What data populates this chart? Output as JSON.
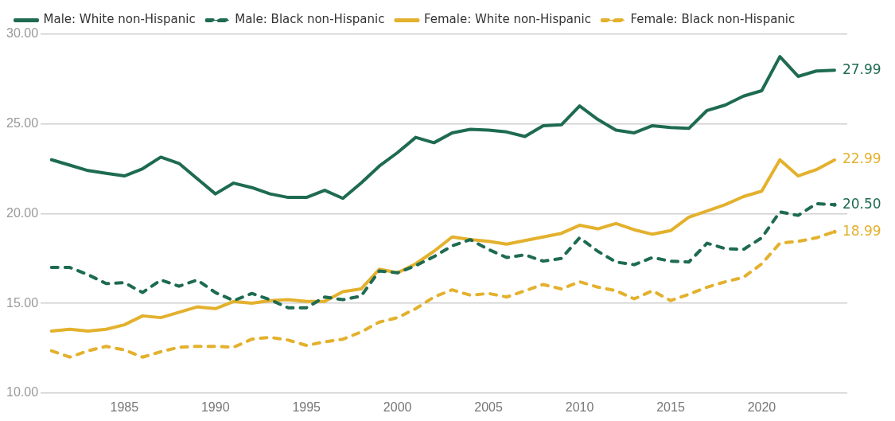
{
  "chart_data": {
    "type": "line",
    "x": [
      1981,
      1982,
      1983,
      1984,
      1985,
      1986,
      1987,
      1988,
      1989,
      1990,
      1991,
      1992,
      1993,
      1994,
      1995,
      1996,
      1997,
      1998,
      1999,
      2000,
      2001,
      2002,
      2003,
      2004,
      2005,
      2006,
      2007,
      2008,
      2009,
      2010,
      2011,
      2012,
      2013,
      2014,
      2015,
      2016,
      2017,
      2018,
      2019,
      2020,
      2021,
      2022,
      2023,
      2024
    ],
    "series": [
      {
        "name": "Male: White non-Hispanic",
        "color": "#1e6b52",
        "line_style": "solid",
        "values": [
          23.0,
          22.7,
          22.4,
          22.25,
          22.1,
          22.5,
          23.15,
          22.8,
          21.95,
          21.1,
          21.7,
          21.45,
          21.1,
          20.9,
          20.9,
          21.3,
          20.85,
          21.7,
          22.65,
          23.4,
          24.25,
          23.95,
          24.5,
          24.7,
          24.65,
          24.55,
          24.3,
          24.9,
          24.95,
          26.0,
          25.25,
          24.65,
          24.5,
          24.9,
          24.8,
          24.75,
          25.75,
          26.05,
          26.55,
          26.85,
          28.75,
          27.65,
          27.95,
          27.99
        ],
        "value_labels": [
          null,
          null,
          null,
          null,
          null,
          null,
          null,
          null,
          null,
          null,
          null,
          null,
          null,
          null,
          null,
          null,
          null,
          null,
          null,
          null,
          null,
          null,
          null,
          null,
          null,
          null,
          null,
          null,
          null,
          null,
          null,
          null,
          null,
          null,
          null,
          null,
          null,
          null,
          null,
          null,
          null,
          null,
          null,
          "27.99"
        ]
      },
      {
        "name": "Male: Black non-Hispanic",
        "color": "#1e6b52",
        "line_style": "dashed",
        "values": [
          17.0,
          17.0,
          16.6,
          16.1,
          16.15,
          15.6,
          16.3,
          15.95,
          16.3,
          15.6,
          15.15,
          15.55,
          15.2,
          14.75,
          14.75,
          15.35,
          15.2,
          15.4,
          16.8,
          16.7,
          17.1,
          17.6,
          18.2,
          18.55,
          18.0,
          17.55,
          17.7,
          17.35,
          17.5,
          18.65,
          17.9,
          17.3,
          17.15,
          17.55,
          17.35,
          17.3,
          18.35,
          18.05,
          18.0,
          18.65,
          20.1,
          19.9,
          20.55,
          20.5
        ],
        "value_labels": [
          null,
          null,
          null,
          null,
          null,
          null,
          null,
          null,
          null,
          null,
          null,
          null,
          null,
          null,
          null,
          null,
          null,
          null,
          null,
          null,
          null,
          null,
          null,
          null,
          null,
          null,
          null,
          null,
          null,
          null,
          null,
          null,
          null,
          null,
          null,
          null,
          null,
          null,
          null,
          null,
          null,
          null,
          null,
          "20.50"
        ]
      },
      {
        "name": "Female: White non-Hispanic",
        "color": "#e3b12d",
        "line_style": "solid",
        "values": [
          13.45,
          13.55,
          13.45,
          13.55,
          13.8,
          14.3,
          14.2,
          14.5,
          14.8,
          14.7,
          15.1,
          15.0,
          15.15,
          15.2,
          15.1,
          15.1,
          15.65,
          15.8,
          16.9,
          16.7,
          17.2,
          17.9,
          18.7,
          18.55,
          18.45,
          18.3,
          18.5,
          18.7,
          18.9,
          19.35,
          19.15,
          19.45,
          19.1,
          18.85,
          19.05,
          19.8,
          20.15,
          20.5,
          20.95,
          21.25,
          23.0,
          22.1,
          22.45,
          22.99
        ],
        "value_labels": [
          null,
          null,
          null,
          null,
          null,
          null,
          null,
          null,
          null,
          null,
          null,
          null,
          null,
          null,
          null,
          null,
          null,
          null,
          null,
          null,
          null,
          null,
          null,
          null,
          null,
          null,
          null,
          null,
          null,
          null,
          null,
          null,
          null,
          null,
          null,
          null,
          null,
          null,
          null,
          null,
          null,
          null,
          null,
          "22.99"
        ]
      },
      {
        "name": "Female: Black non-Hispanic",
        "color": "#e3b12d",
        "line_style": "dashed",
        "values": [
          12.35,
          12.0,
          12.35,
          12.6,
          12.4,
          12.0,
          12.3,
          12.55,
          12.6,
          12.6,
          12.55,
          13.0,
          13.1,
          12.95,
          12.65,
          12.85,
          13.0,
          13.4,
          13.95,
          14.2,
          14.7,
          15.35,
          15.75,
          15.45,
          15.55,
          15.35,
          15.7,
          16.05,
          15.8,
          16.2,
          15.9,
          15.7,
          15.25,
          15.7,
          15.15,
          15.5,
          15.9,
          16.2,
          16.45,
          17.2,
          18.35,
          18.45,
          18.65,
          18.99
        ],
        "value_labels": [
          null,
          null,
          null,
          null,
          null,
          null,
          null,
          null,
          null,
          null,
          null,
          null,
          null,
          null,
          null,
          null,
          null,
          null,
          null,
          null,
          null,
          null,
          null,
          null,
          null,
          null,
          null,
          null,
          null,
          null,
          null,
          null,
          null,
          null,
          null,
          null,
          null,
          null,
          null,
          null,
          null,
          null,
          null,
          "18.99"
        ]
      }
    ],
    "xlim": [
      1980.4,
      2024.7
    ],
    "xticks": [
      1985,
      1990,
      1995,
      2000,
      2005,
      2010,
      2015,
      2020
    ],
    "ylim": [
      10,
      30
    ],
    "yticks": [
      {
        "value": 10,
        "label": "10.00"
      },
      {
        "value": 15,
        "label": "15.00"
      },
      {
        "value": 20,
        "label": "20.00"
      },
      {
        "value": 25,
        "label": "25.00"
      },
      {
        "value": 30,
        "label": "30.00"
      }
    ],
    "grid": "y",
    "legend": "top",
    "marker": "none"
  }
}
